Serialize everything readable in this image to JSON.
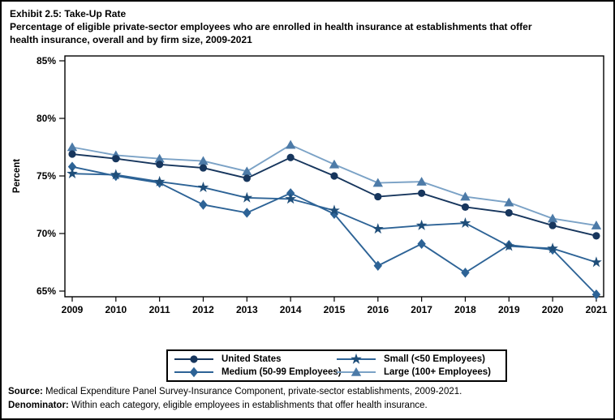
{
  "title": "Exhibit 2.5: Take-Up Rate",
  "subtitle_lines": [
    "Percentage of eligible private-sector employees who are enrolled in health insurance at establishments that offer",
    "health insurance, overall and by firm size, 2009-2021"
  ],
  "chart_data": {
    "type": "line",
    "x": [
      2009,
      2010,
      2011,
      2012,
      2013,
      2014,
      2015,
      2016,
      2017,
      2018,
      2019,
      2020,
      2021
    ],
    "xlabel": "",
    "ylabel": "Percent",
    "ylim": [
      65,
      85
    ],
    "yticks": [
      65,
      70,
      75,
      80,
      85
    ],
    "ytick_suffix": "%",
    "grid": false,
    "legend_position": "bottom",
    "series": [
      {
        "name": "United States",
        "marker": "circle",
        "marker_color": "#17365d",
        "line_color": "#17365d",
        "values": [
          76.9,
          76.5,
          76.0,
          75.7,
          74.8,
          76.6,
          75.0,
          73.2,
          73.5,
          72.3,
          71.8,
          70.7,
          69.8
        ]
      },
      {
        "name": "Small (<50 Employees)",
        "marker": "star",
        "marker_color": "#1f4e79",
        "line_color": "#2d6396",
        "values": [
          75.2,
          75.1,
          74.5,
          74.0,
          73.1,
          73.0,
          72.0,
          70.4,
          70.7,
          70.9,
          68.9,
          68.7,
          67.5
        ]
      },
      {
        "name": "Medium (50-99 Employees)",
        "marker": "diamond",
        "marker_color": "#2d6396",
        "line_color": "#2d6396",
        "values": [
          75.8,
          75.0,
          74.4,
          72.5,
          71.8,
          73.5,
          71.7,
          67.2,
          69.1,
          66.6,
          69.0,
          68.6,
          64.7
        ]
      },
      {
        "name": "Large (100+ Employees)",
        "marker": "triangle",
        "marker_color": "#4d7ba8",
        "line_color": "#7ba2c6",
        "values": [
          77.5,
          76.8,
          76.5,
          76.3,
          75.4,
          77.7,
          76.0,
          74.4,
          74.5,
          73.2,
          72.7,
          71.3,
          70.7
        ]
      }
    ]
  },
  "footer": {
    "source_label": "Source:",
    "source_text": " Medical Expenditure Panel Survey-Insurance Component, private-sector establishments, 2009-2021.",
    "denominator_label": "Denominator:",
    "denominator_text": " Within each category, eligible employees in establishments that offer health insurance."
  }
}
